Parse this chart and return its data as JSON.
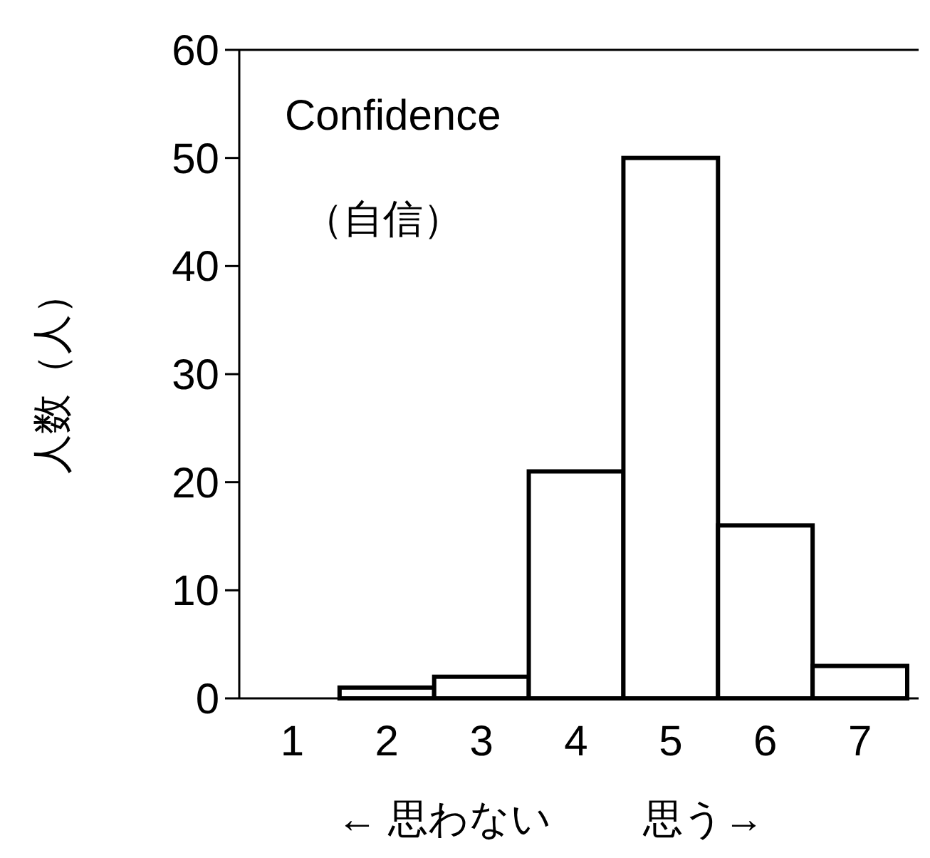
{
  "chart_data": {
    "type": "bar",
    "title": "Confidence",
    "subtitle": "（自信）",
    "ylabel": "人数（人）",
    "xlabel": "← 思わない　　 思う→",
    "categories": [
      "1",
      "2",
      "3",
      "4",
      "5",
      "6",
      "7"
    ],
    "values": [
      0,
      1,
      2,
      21,
      50,
      16,
      3
    ],
    "color": "#ffffff",
    "ylim": [
      0,
      60
    ],
    "yticks": [
      0,
      10,
      20,
      30,
      40,
      50,
      60
    ],
    "grid": false
  }
}
